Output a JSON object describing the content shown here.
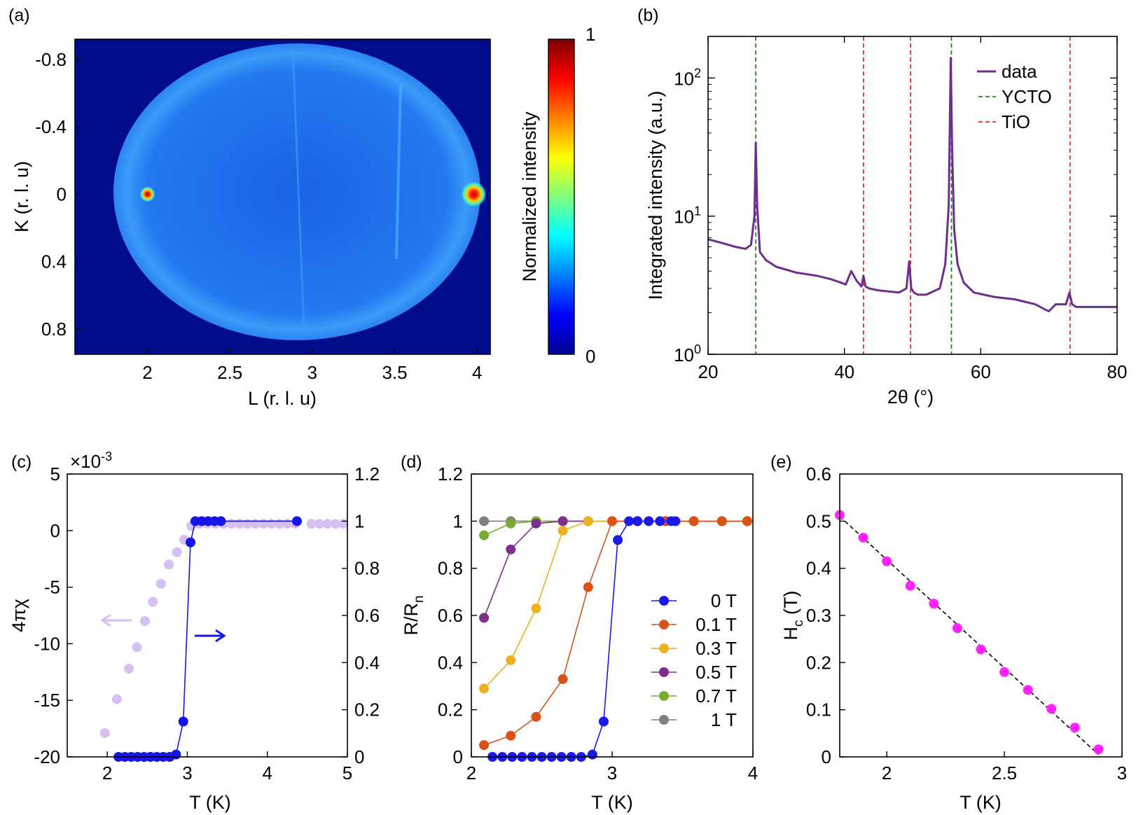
{
  "chart_data": [
    {
      "panel": "(a)",
      "type": "heatmap",
      "xlabel": "L (r. l. u)",
      "ylabel": "K (r. l. u)",
      "xlim": [
        1.56,
        4.08
      ],
      "ylim": [
        -0.92,
        0.95
      ],
      "xticks": [
        "2",
        "2.5",
        "3",
        "3.5",
        "4"
      ],
      "xtick_values": [
        2,
        2.5,
        3,
        3.5,
        4
      ],
      "yticks": [
        "-0.8",
        "-0.4",
        "0",
        "0.4",
        "0.8"
      ],
      "ytick_values": [
        -0.8,
        -0.4,
        0,
        0.4,
        0.8
      ],
      "colorbar": {
        "label": "Normalized intensity",
        "min_label": "0",
        "max_label": "1",
        "min": 0,
        "max": 1
      },
      "bright_spots": [
        {
          "L": 2.0,
          "K": 0.0,
          "intensity": 1.0
        },
        {
          "L": 3.98,
          "K": 0.0,
          "intensity": 1.0
        }
      ],
      "background_intensity": 0.3,
      "colors": {
        "background": "#000c8a",
        "disk": "#1f72f0",
        "rim": "#3c9ff8"
      }
    },
    {
      "panel": "(b)",
      "type": "line",
      "xlabel": "2θ (°)",
      "ylabel": "Integrated intensity (a.u.)",
      "xlim": [
        20,
        80
      ],
      "ylim": [
        1,
        200
      ],
      "yscale": "log",
      "xticks": [
        "20",
        "40",
        "60",
        "80"
      ],
      "xtick_values": [
        20,
        40,
        60,
        80
      ],
      "yticks": [
        {
          "base": "10",
          "exp": "0",
          "value": 1
        },
        {
          "base": "10",
          "exp": "1",
          "value": 10
        },
        {
          "base": "10",
          "exp": "2",
          "value": 100
        }
      ],
      "series": [
        {
          "name": "data",
          "color": "#6c2f8f",
          "x": [
            20,
            22,
            24,
            25.5,
            26.3,
            26.8,
            27.0,
            27.2,
            27.6,
            28.5,
            30,
            33,
            36,
            38,
            39.5,
            40.2,
            41,
            41.8,
            42.5,
            42.8,
            43.1,
            43.6,
            45,
            48,
            49.1,
            49.5,
            49.8,
            50.2,
            50.8,
            52,
            54,
            54.8,
            55.3,
            55.6,
            55.8,
            56.1,
            56.6,
            57.5,
            59,
            62,
            65,
            68,
            69.5,
            70,
            71,
            72.5,
            73.0,
            73.4,
            74,
            76,
            78,
            80
          ],
          "y": [
            6.8,
            6.4,
            6.0,
            5.8,
            6.2,
            10,
            34,
            12,
            5.5,
            4.8,
            4.3,
            3.9,
            3.7,
            3.5,
            3.3,
            3.2,
            4.0,
            3.4,
            3.1,
            3.7,
            3.1,
            3.0,
            2.9,
            2.8,
            3.0,
            4.7,
            3.0,
            2.8,
            2.7,
            2.7,
            3.0,
            4.5,
            12,
            140,
            30,
            8,
            4.5,
            3.3,
            2.8,
            2.6,
            2.5,
            2.3,
            2.1,
            2.05,
            2.3,
            2.3,
            2.8,
            2.3,
            2.2,
            2.2,
            2.2,
            2.2
          ]
        }
      ],
      "reference_lines": [
        {
          "name": "YCTO",
          "color": "#1a8a1a",
          "x": [
            27.0,
            55.7
          ]
        },
        {
          "name": "TiO",
          "color": "#e03030",
          "x": [
            42.8,
            49.7,
            73.1
          ]
        }
      ],
      "legend": [
        "data",
        "YCTO",
        "TiO"
      ],
      "legend_position": "top-right"
    },
    {
      "panel": "(c)",
      "type": "scatter",
      "xlabel": "T (K)",
      "ylabel_left": "4πχ",
      "ylabel_right": "",
      "multiplier": {
        "base": "×10",
        "exp": "-3"
      },
      "xlim": [
        1.5,
        5
      ],
      "ylim_left": [
        -20,
        5
      ],
      "ylim_right": [
        0,
        1.2
      ],
      "xticks": [
        "2",
        "3",
        "4",
        "5"
      ],
      "xtick_values": [
        2,
        3,
        4,
        5
      ],
      "yticks_left": [
        "-20",
        "-15",
        "-10",
        "-5",
        "0",
        "5"
      ],
      "ytick_values_left": [
        -20,
        -15,
        -10,
        -5,
        0,
        5
      ],
      "yticks_right": [
        "0",
        "0.2",
        "0.4",
        "0.6",
        "0.8",
        "1",
        "1.2"
      ],
      "ytick_values_right": [
        0,
        0.2,
        0.4,
        0.6,
        0.8,
        1,
        1.2
      ],
      "series": [
        {
          "name": "4πχ",
          "axis": "left",
          "color": "#d8bff2",
          "connected": false,
          "x": [
            1.97,
            2.12,
            2.27,
            2.37,
            2.47,
            2.57,
            2.67,
            2.77,
            2.87,
            2.96,
            3.05,
            3.15,
            3.25,
            3.35,
            3.45,
            3.55,
            3.65,
            3.75,
            3.85,
            3.95,
            4.05,
            4.15,
            4.25,
            4.35,
            4.55,
            4.65,
            4.75,
            4.85,
            4.95
          ],
          "y": [
            -17.9,
            -14.9,
            -12.2,
            -10.3,
            -8.0,
            -6.3,
            -4.7,
            -3.0,
            -1.9,
            -0.8,
            0.4,
            0.6,
            0.6,
            0.6,
            0.6,
            0.6,
            0.6,
            0.6,
            0.6,
            0.6,
            0.6,
            0.6,
            0.6,
            0.6,
            0.6,
            0.6,
            0.6,
            0.6,
            0.6
          ]
        },
        {
          "name": "R/Rn",
          "axis": "right",
          "color": "#1515e8",
          "connected": true,
          "x": [
            2.14,
            2.22,
            2.3,
            2.38,
            2.46,
            2.54,
            2.62,
            2.7,
            2.78,
            2.86,
            2.95,
            3.04,
            3.1,
            3.18,
            3.26,
            3.34,
            3.42,
            4.37
          ],
          "y": [
            0.0,
            0.0,
            0.0,
            0.0,
            0.0,
            0.0,
            0.0,
            0.0,
            0.0,
            0.01,
            0.15,
            0.91,
            1.0,
            1.0,
            1.0,
            1.0,
            1.0,
            1.0
          ]
        }
      ]
    },
    {
      "panel": "(d)",
      "type": "line",
      "xlabel": "T (K)",
      "ylabel": "R/R",
      "ylabel_sub": "n",
      "xlim": [
        2,
        4
      ],
      "ylim": [
        0,
        1.2
      ],
      "xticks": [
        "2",
        "3",
        "4"
      ],
      "xtick_values": [
        2,
        3,
        4
      ],
      "yticks": [
        "0",
        "0.2",
        "0.4",
        "0.6",
        "0.8",
        "1",
        "1.2"
      ],
      "ytick_values": [
        0,
        0.2,
        0.4,
        0.6,
        0.8,
        1,
        1.2
      ],
      "legend_position": "bottom-right",
      "series": [
        {
          "name": "0 T",
          "color": "#1a1aeb",
          "x": [
            2.15,
            2.22,
            2.29,
            2.36,
            2.43,
            2.5,
            2.57,
            2.64,
            2.71,
            2.78,
            2.86,
            2.94,
            3.04,
            3.12,
            3.18,
            3.26,
            3.34,
            3.42,
            3.45
          ],
          "y": [
            0.0,
            0.0,
            0.0,
            0.0,
            0.0,
            0.0,
            0.0,
            0.0,
            0.0,
            0.0,
            0.01,
            0.15,
            0.92,
            1.0,
            1.0,
            1.0,
            1.0,
            1.0,
            1.0
          ]
        },
        {
          "name": "0.1 T",
          "color": "#d95319",
          "x": [
            2.09,
            2.28,
            2.46,
            2.65,
            2.83,
            3.0,
            3.18,
            3.38,
            3.58,
            3.78,
            3.96
          ],
          "y": [
            0.05,
            0.09,
            0.17,
            0.33,
            0.72,
            1.0,
            1.0,
            1.0,
            1.0,
            1.0,
            1.0
          ]
        },
        {
          "name": "0.3 T",
          "color": "#edb120",
          "x": [
            2.09,
            2.28,
            2.46,
            2.65,
            2.83,
            3.0,
            3.18,
            3.38,
            3.58,
            3.78,
            3.96
          ],
          "y": [
            0.29,
            0.41,
            0.63,
            0.96,
            1.0,
            1.0,
            1.0,
            1.0,
            1.0,
            1.0,
            1.0
          ]
        },
        {
          "name": "0.5 T",
          "color": "#7e2f8e",
          "x": [
            2.09,
            2.28,
            2.46,
            2.65,
            2.83,
            3.0,
            3.18,
            3.38,
            3.58,
            3.78,
            3.96
          ],
          "y": [
            0.59,
            0.88,
            0.99,
            1.0,
            1.0,
            1.0,
            1.0,
            1.0,
            1.0,
            1.0,
            1.0
          ]
        },
        {
          "name": "0.7 T",
          "color": "#77ac30",
          "x": [
            2.09,
            2.28,
            2.46,
            2.65,
            2.83,
            3.0,
            3.18,
            3.38,
            3.58,
            3.78,
            3.96
          ],
          "y": [
            0.94,
            0.99,
            1.0,
            1.0,
            1.0,
            1.0,
            1.0,
            1.0,
            1.0,
            1.0,
            1.0
          ]
        },
        {
          "name": "1 T",
          "color": "#808080",
          "x": [
            2.09,
            2.28,
            2.46,
            2.65,
            2.83,
            3.0,
            3.18,
            3.38,
            3.58,
            3.78,
            3.96
          ],
          "y": [
            1.0,
            1.0,
            1.0,
            1.0,
            1.0,
            1.0,
            1.0,
            1.0,
            1.0,
            1.0,
            1.0
          ]
        }
      ]
    },
    {
      "panel": "(e)",
      "type": "scatter",
      "xlabel": "T (K)",
      "ylabel": "H",
      "ylabel_sub": "c",
      "ylabel_suffix": " (T)",
      "xlim": [
        1.8,
        3
      ],
      "ylim": [
        0,
        0.6
      ],
      "xticks": [
        "2",
        "2.5",
        "3"
      ],
      "xtick_values": [
        2,
        2.5,
        3
      ],
      "yticks": [
        "0",
        "0.1",
        "0.2",
        "0.3",
        "0.4",
        "0.5",
        "0.6"
      ],
      "ytick_values": [
        0,
        0.1,
        0.2,
        0.3,
        0.4,
        0.5,
        0.6
      ],
      "series": [
        {
          "name": "Hc",
          "color": "#ff22ff",
          "x": [
            1.8,
            1.9,
            2.0,
            2.1,
            2.2,
            2.3,
            2.4,
            2.5,
            2.6,
            2.7,
            2.8,
            2.9
          ],
          "y": [
            0.513,
            0.465,
            0.415,
            0.363,
            0.325,
            0.273,
            0.228,
            0.18,
            0.142,
            0.102,
            0.062,
            0.016
          ]
        }
      ],
      "fit_line": {
        "color": "#000000",
        "style": "dashed",
        "x": [
          1.8,
          2.9
        ],
        "y": [
          0.51,
          0.005
        ]
      }
    }
  ]
}
